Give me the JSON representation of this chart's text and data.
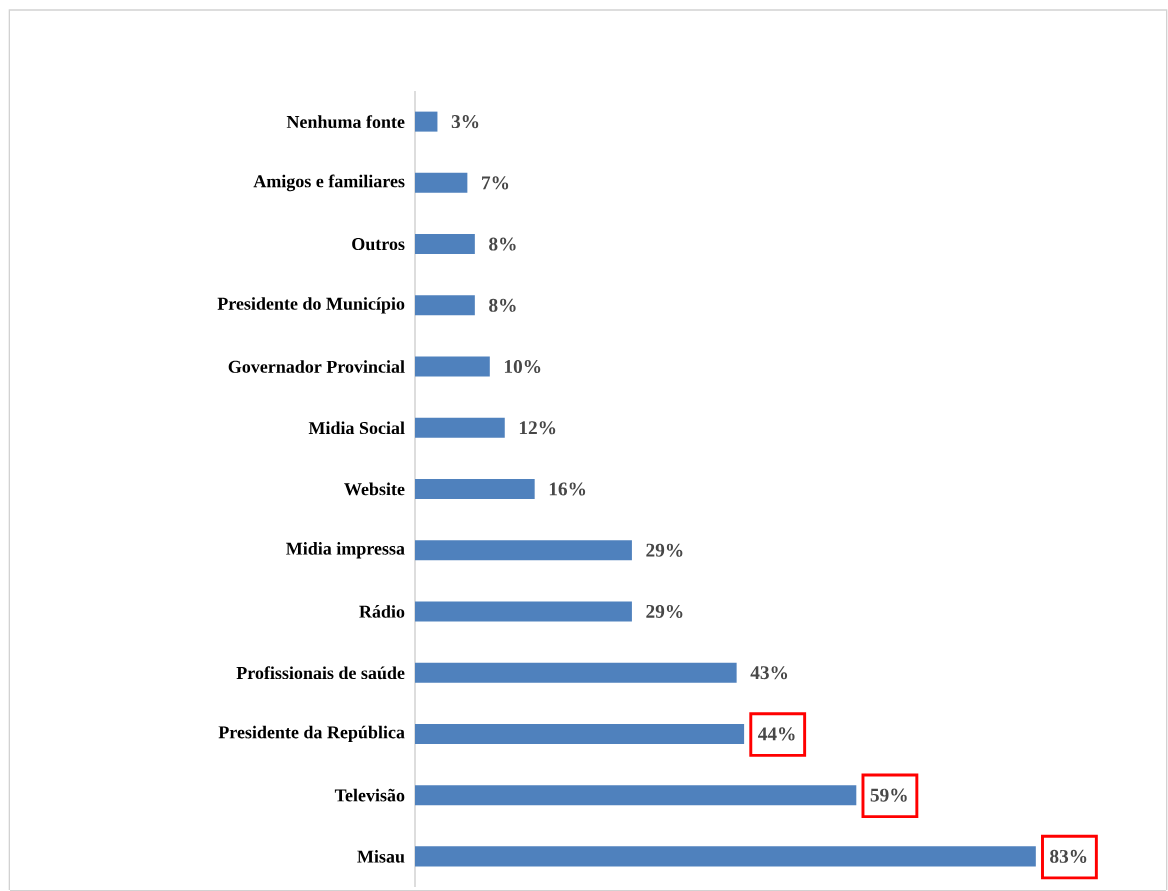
{
  "chart_data": {
    "type": "bar",
    "orientation": "horizontal",
    "color": "#4f81bd",
    "categories": [
      "Nenhuma fonte",
      "Amigos e familiares",
      "Outros",
      "Presidente do Município",
      "Governador Provincial",
      "Midia Social",
      "Website",
      "Midia impressa",
      "Rádio",
      "Profissionais de saúde",
      "Presidente da República",
      "Televisão",
      "Misau"
    ],
    "values": [
      3,
      7,
      8,
      8,
      10,
      12,
      16,
      29,
      29,
      43,
      44,
      59,
      83
    ],
    "value_labels": [
      "3%",
      "7%",
      "8%",
      "8%",
      "10%",
      "12%",
      "16%",
      "29%",
      "29%",
      "43%",
      "44%",
      "59%",
      "83%"
    ]
  }
}
